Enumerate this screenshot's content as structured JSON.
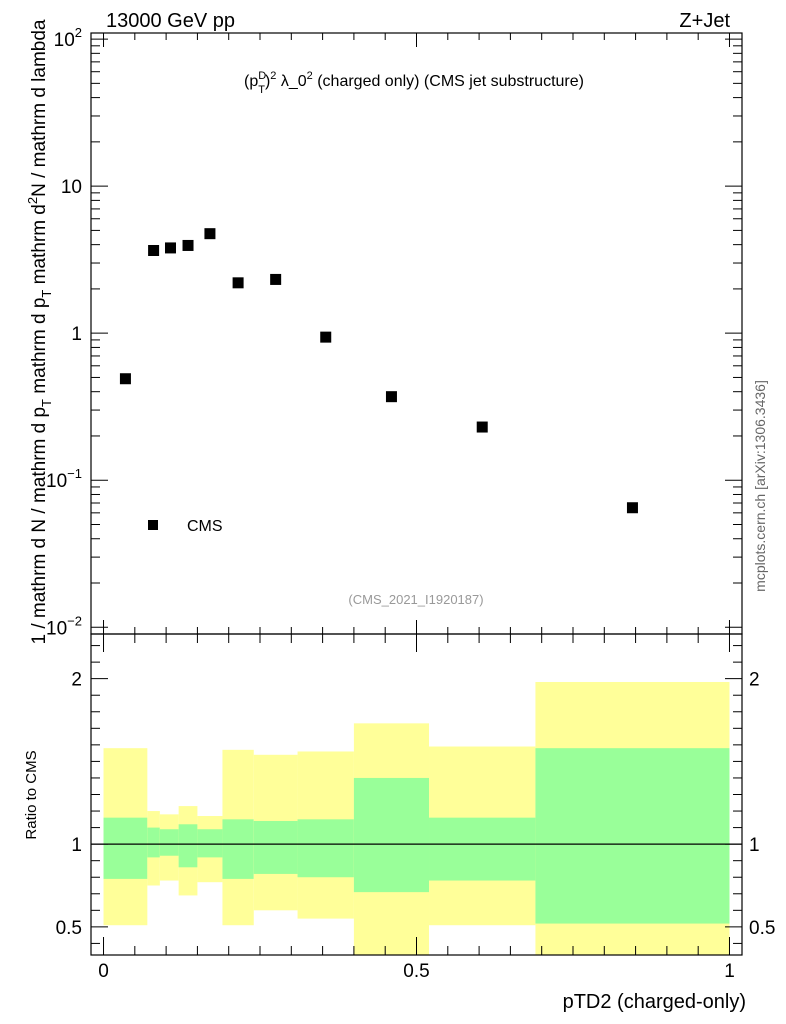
{
  "header": {
    "left": "13000 GeV pp",
    "right": "Z+Jet",
    "plot_title": "(p_T^D)^2 λ_0^2 (charged only) (CMS jet substructure)",
    "watermark": "(CMS_2021_I1920187)",
    "side_label": "mcplots.cern.ch [arXiv:1306.3436]"
  },
  "colors": {
    "stat_band": "#99ff99",
    "syst_band": "#ffff99",
    "marker": "#000000"
  },
  "chart_data": [
    {
      "type": "scatter",
      "title": "(p_T^D)^2 λ_0^2 (charged only) (CMS jet substructure)",
      "ylabel": "1 / mathrm d N / mathrm d p_T mathrm d p_T mathrm d^2N / mathrm d lambda",
      "yscale": "log",
      "ylim": [
        0.009,
        110
      ],
      "xlim": [
        -0.02,
        1.02
      ],
      "y_ticks": [
        {
          "value": 0.01,
          "label": "10^-2"
        },
        {
          "value": 0.1,
          "label": "10^-1"
        },
        {
          "value": 1,
          "label": "1"
        },
        {
          "value": 10,
          "label": "10"
        },
        {
          "value": 100,
          "label": "10^2"
        }
      ],
      "legend": {
        "label": "CMS",
        "position": "bottom-left"
      },
      "series": [
        {
          "name": "CMS",
          "points": [
            {
              "x": 0.035,
              "y": 0.49
            },
            {
              "x": 0.08,
              "y": 3.65
            },
            {
              "x": 0.107,
              "y": 3.8
            },
            {
              "x": 0.135,
              "y": 3.95
            },
            {
              "x": 0.17,
              "y": 4.75
            },
            {
              "x": 0.215,
              "y": 2.2
            },
            {
              "x": 0.275,
              "y": 2.32
            },
            {
              "x": 0.355,
              "y": 0.94
            },
            {
              "x": 0.46,
              "y": 0.37
            },
            {
              "x": 0.605,
              "y": 0.23
            },
            {
              "x": 0.845,
              "y": 0.065
            }
          ]
        }
      ]
    },
    {
      "type": "area",
      "title": "Ratio to CMS",
      "xlabel": "pTD2 (charged-only)",
      "ylabel": "Ratio to CMS",
      "ylim": [
        0.33,
        2.27
      ],
      "xlim": [
        -0.02,
        1.02
      ],
      "x_ticks": [
        {
          "value": 0,
          "label": "0"
        },
        {
          "value": 0.5,
          "label": "0.5"
        },
        {
          "value": 1,
          "label": "1"
        }
      ],
      "y_ticks": [
        {
          "value": 0.5,
          "label": "0.5"
        },
        {
          "value": 1,
          "label": "1"
        },
        {
          "value": 2,
          "label": "2"
        }
      ],
      "reference_line": 1,
      "bins": [
        {
          "x0": 0.0,
          "x1": 0.07,
          "stat": [
            0.79,
            1.16
          ],
          "total": [
            0.51,
            1.58
          ]
        },
        {
          "x0": 0.07,
          "x1": 0.09,
          "stat": [
            0.92,
            1.1
          ],
          "total": [
            0.75,
            1.2
          ]
        },
        {
          "x0": 0.09,
          "x1": 0.12,
          "stat": [
            0.93,
            1.09
          ],
          "total": [
            0.78,
            1.18
          ]
        },
        {
          "x0": 0.12,
          "x1": 0.15,
          "stat": [
            0.86,
            1.12
          ],
          "total": [
            0.69,
            1.23
          ]
        },
        {
          "x0": 0.15,
          "x1": 0.19,
          "stat": [
            0.92,
            1.09
          ],
          "total": [
            0.77,
            1.17
          ]
        },
        {
          "x0": 0.19,
          "x1": 0.24,
          "stat": [
            0.79,
            1.15
          ],
          "total": [
            0.51,
            1.57
          ]
        },
        {
          "x0": 0.24,
          "x1": 0.31,
          "stat": [
            0.82,
            1.14
          ],
          "total": [
            0.6,
            1.54
          ]
        },
        {
          "x0": 0.31,
          "x1": 0.4,
          "stat": [
            0.8,
            1.15
          ],
          "total": [
            0.55,
            1.56
          ]
        },
        {
          "x0": 0.4,
          "x1": 0.52,
          "stat": [
            0.71,
            1.4
          ],
          "total": [
            0.33,
            1.73
          ]
        },
        {
          "x0": 0.52,
          "x1": 0.69,
          "stat": [
            0.78,
            1.16
          ],
          "total": [
            0.51,
            1.59
          ]
        },
        {
          "x0": 0.69,
          "x1": 1.0,
          "stat": [
            0.52,
            1.58
          ],
          "total": [
            0.33,
            1.98
          ]
        }
      ]
    }
  ]
}
